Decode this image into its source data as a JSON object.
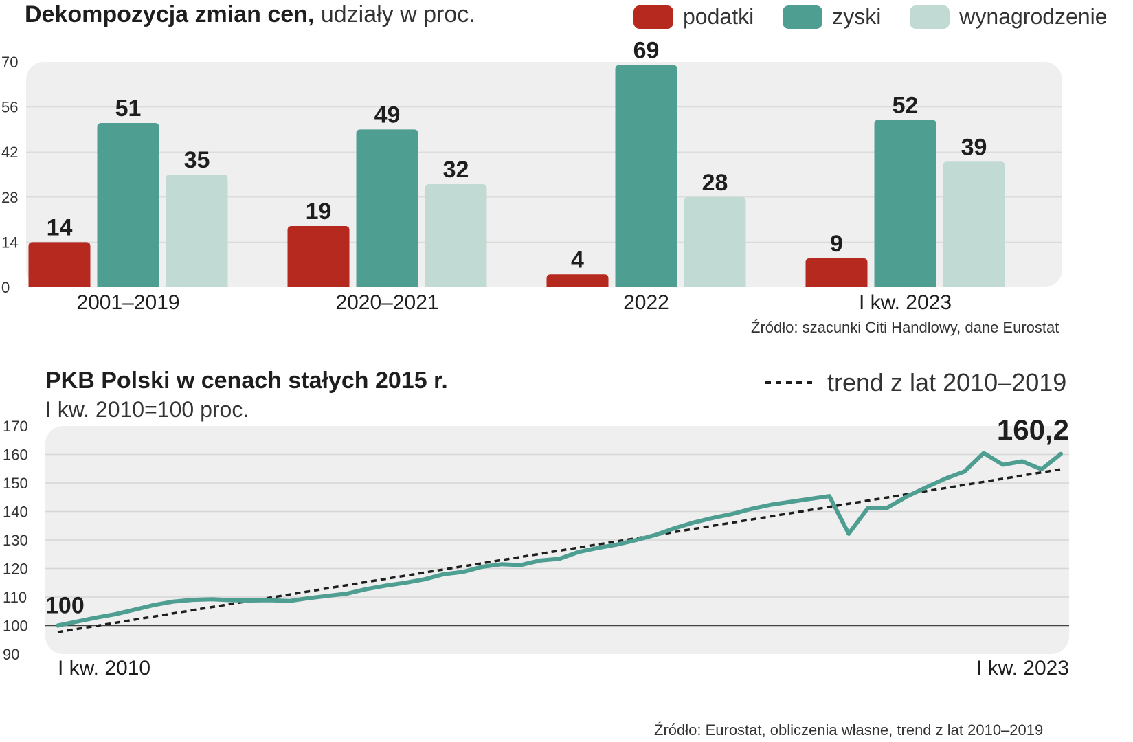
{
  "chart1": {
    "title_bold": "Dekompozycja zmian cen,",
    "title_rest": "udziały w proc.",
    "legend": [
      {
        "label": "podatki",
        "color": "#b5291f"
      },
      {
        "label": "zyski",
        "color": "#4f9e92"
      },
      {
        "label": "wynagrodzenie",
        "color": "#c1dbd4"
      }
    ],
    "source": "Źródło: szacunki Citi Handlowy, dane Eurostat"
  },
  "chart2": {
    "title": "PKB Polski w cenach stałych 2015 r.",
    "subtitle": "I kw. 2010=100 proc.",
    "legend_trend": "trend z lat 2010–2019",
    "start_label": "100",
    "end_label": "160,2",
    "source": "Źródło: Eurostat, obliczenia własne, trend z lat 2010–2019"
  },
  "chart_data": [
    {
      "type": "bar",
      "title": "Dekompozycja zmian cen, udziały w proc.",
      "categories": [
        "2001–2019",
        "2020–2021",
        "2022",
        "I kw. 2023"
      ],
      "series": [
        {
          "name": "podatki",
          "color": "#b5291f",
          "values": [
            14,
            19,
            4,
            9
          ]
        },
        {
          "name": "zyski",
          "color": "#4f9e92",
          "values": [
            51,
            49,
            69,
            52
          ]
        },
        {
          "name": "wynagrodzenie",
          "color": "#c1dbd4",
          "values": [
            35,
            32,
            28,
            39
          ]
        }
      ],
      "yticks": [
        0,
        14,
        28,
        42,
        56,
        70
      ],
      "ylim": [
        0,
        70
      ]
    },
    {
      "type": "line",
      "title": "PKB Polski w cenach stałych 2015 r.",
      "ylabel": "I kw. 2010=100 proc.",
      "x_start_label": "I kw. 2010",
      "x_end_label": "I kw. 2023",
      "yticks": [
        90,
        100,
        110,
        120,
        130,
        140,
        150,
        160,
        170
      ],
      "ylim": [
        90,
        170
      ],
      "baseline": 100,
      "series": [
        {
          "name": "PKB",
          "color": "#4f9e92",
          "values": [
            100,
            101.4,
            102.8,
            104,
            105.6,
            107.2,
            108.4,
            109,
            109.2,
            108.9,
            108.8,
            108.9,
            108.6,
            109.6,
            110.4,
            111.2,
            112.8,
            114,
            115,
            116.2,
            118,
            118.8,
            120.6,
            121.5,
            121.2,
            122.8,
            123.4,
            125.8,
            127.2,
            128.4,
            130,
            131.8,
            134.2,
            136.2,
            137.8,
            139.2,
            141,
            142.4,
            143.4,
            144.4,
            145.4,
            132.2,
            141.2,
            141.3,
            145.2,
            148.4,
            151.5,
            154,
            160.5,
            156.4,
            157.6,
            154.8,
            160.2
          ]
        },
        {
          "name": "trend z lat 2010–2019",
          "color": "#1e1e1e",
          "dashed": true,
          "values_start_end": [
            97.7,
            154.8
          ]
        }
      ]
    }
  ]
}
